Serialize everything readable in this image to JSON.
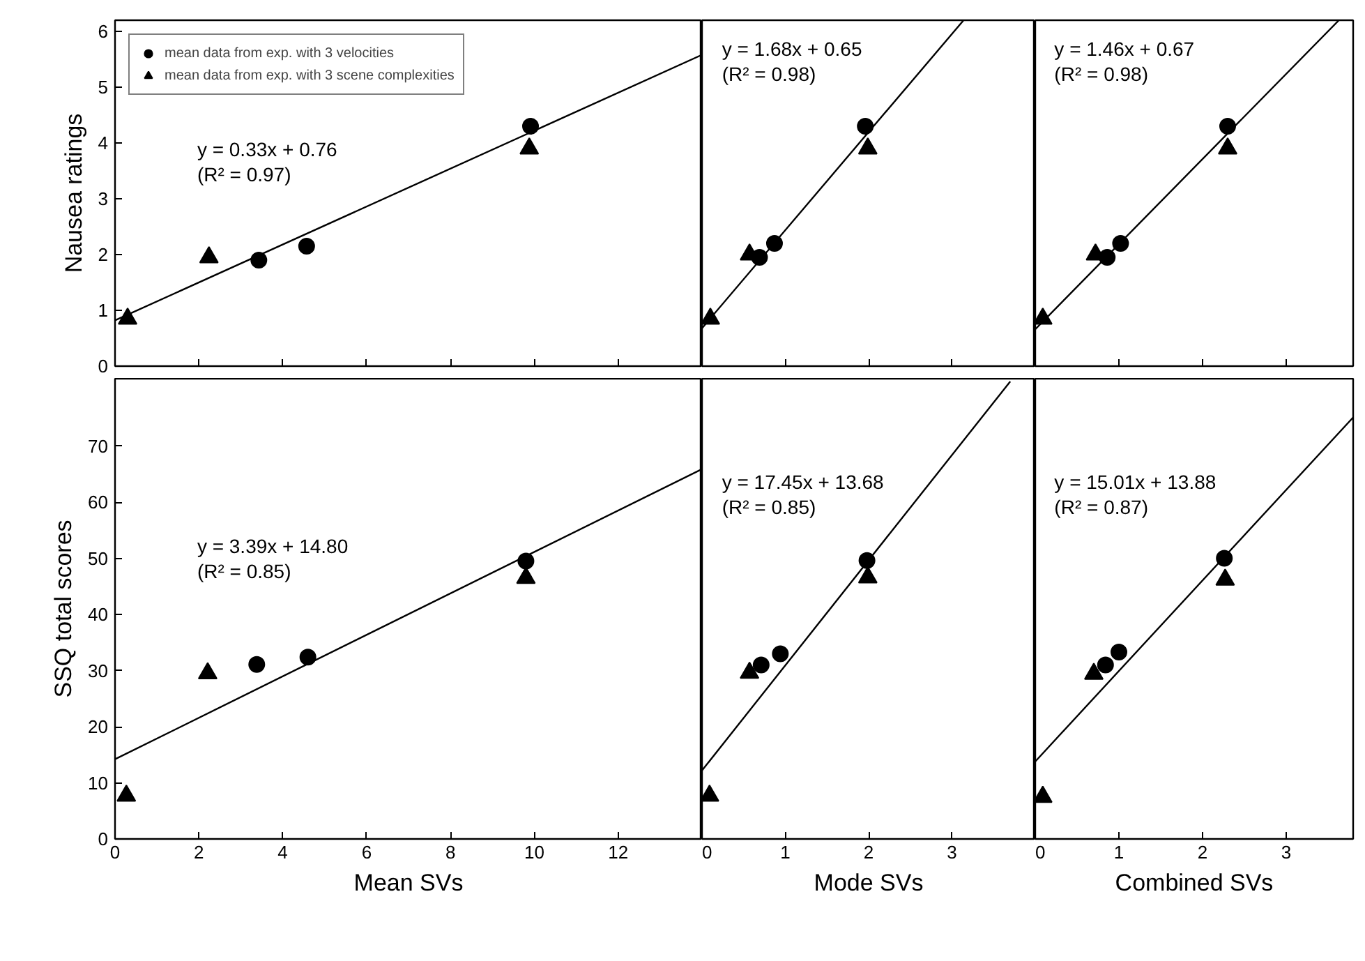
{
  "chart_data": [
    {
      "type": "scatter",
      "ylabel": "Nausea ratings",
      "xlim": [
        0,
        14
      ],
      "xticks": [
        0,
        2,
        4,
        6,
        8,
        10,
        12
      ],
      "ylim": [
        0,
        6.2
      ],
      "yticks": [
        0,
        1,
        2,
        3,
        4,
        5,
        6
      ],
      "tick_labels": "y",
      "legend": "top left",
      "annotations": [
        "y = 0.33x + 0.76",
        "(R² = 0.97)"
      ],
      "series": [
        {
          "name": "mean data from exp. with 3 velocities",
          "color": "#000000",
          "marker": "circle",
          "x": [
            3.43,
            4.57,
            9.91
          ],
          "values": [
            1.9,
            2.15,
            4.3
          ]
        },
        {
          "name": "mean data from exp. with 3 scene complexities",
          "color": "#000000",
          "marker": "triangle",
          "x": [
            0.3,
            2.24,
            9.88
          ],
          "values": [
            0.85,
            1.95,
            3.9
          ]
        },
        {
          "type": "line",
          "color": "#000000",
          "x": [
            0,
            14
          ],
          "values": [
            0.82,
            5.58
          ]
        }
      ]
    },
    {
      "type": "scatter",
      "xlim": [
        0,
        4
      ],
      "xticks": [
        0,
        1,
        2,
        3
      ],
      "ylim": [
        0,
        6.2
      ],
      "tick_labels": false,
      "annotations": [
        "y = 1.68x + 0.65",
        "(R² = 0.98)"
      ],
      "series": [
        {
          "color": "#000000",
          "marker": "circle",
          "x": [
            0.69,
            0.87,
            1.96
          ],
          "values": [
            1.95,
            2.2,
            4.3
          ]
        },
        {
          "color": "#000000",
          "marker": "triangle",
          "x": [
            0.1,
            0.57,
            1.99
          ],
          "values": [
            0.85,
            2.0,
            3.9
          ]
        },
        {
          "type": "line",
          "color": "#000000",
          "x": [
            0,
            3.14
          ],
          "values": [
            0.68,
            6.2
          ]
        }
      ]
    },
    {
      "type": "scatter",
      "xlim": [
        0,
        3.8
      ],
      "xticks": [
        0,
        1,
        2,
        3
      ],
      "ylim": [
        0,
        6.2
      ],
      "tick_labels": false,
      "annotations": [
        "y = 1.46x + 0.67",
        "(R² = 0.98)"
      ],
      "series": [
        {
          "color": "#000000",
          "marker": "circle",
          "x": [
            0.86,
            1.02,
            2.3
          ],
          "values": [
            1.95,
            2.2,
            4.3
          ]
        },
        {
          "color": "#000000",
          "marker": "triangle",
          "x": [
            0.09,
            0.72,
            2.3
          ],
          "values": [
            0.85,
            2.0,
            3.9
          ]
        },
        {
          "type": "line",
          "color": "#000000",
          "x": [
            0,
            3.63
          ],
          "values": [
            0.66,
            6.2
          ]
        }
      ]
    },
    {
      "type": "scatter",
      "xlabel": "Mean SVs",
      "ylabel": "SSQ total scores",
      "xlim": [
        0,
        14
      ],
      "xticks": [
        0,
        2,
        4,
        6,
        8,
        10,
        12
      ],
      "ylim": [
        0,
        82
      ],
      "yticks": [
        0,
        10,
        20,
        30,
        40,
        50,
        60,
        70
      ],
      "annotations": [
        "y = 3.39x + 14.80",
        "(R² = 0.85)"
      ],
      "series": [
        {
          "color": "#000000",
          "marker": "circle",
          "x": [
            3.38,
            4.6,
            9.8
          ],
          "values": [
            31.1,
            32.4,
            49.5
          ]
        },
        {
          "color": "#000000",
          "marker": "triangle",
          "x": [
            0.27,
            2.21,
            9.8
          ],
          "values": [
            7.7,
            29.5,
            46.5
          ]
        },
        {
          "type": "line",
          "color": "#000000",
          "x": [
            0,
            14
          ],
          "values": [
            14.2,
            65.9
          ]
        }
      ]
    },
    {
      "type": "scatter",
      "xlabel": "Mode SVs",
      "xlim": [
        0,
        4
      ],
      "xticks": [
        0,
        1,
        2,
        3
      ],
      "ylim": [
        0,
        82
      ],
      "tick_labels": "x",
      "annotations": [
        "y = 17.45x + 13.68",
        "(R² = 0.85)"
      ],
      "series": [
        {
          "color": "#000000",
          "marker": "circle",
          "x": [
            0.71,
            0.94,
            1.98
          ],
          "values": [
            31.0,
            33.0,
            49.6
          ]
        },
        {
          "color": "#000000",
          "marker": "triangle",
          "x": [
            0.09,
            0.57,
            1.99
          ],
          "values": [
            7.7,
            29.6,
            46.6
          ]
        },
        {
          "type": "line",
          "color": "#000000",
          "x": [
            0,
            3.7
          ],
          "values": [
            12.2,
            81.5
          ]
        }
      ]
    },
    {
      "type": "scatter",
      "xlabel": "Combined SVs",
      "xlim": [
        0,
        3.8
      ],
      "xticks": [
        0,
        1,
        2,
        3
      ],
      "ylim": [
        0,
        82
      ],
      "tick_labels": "x",
      "annotations": [
        "y = 15.01x + 13.88",
        "(R² = 0.87)"
      ],
      "series": [
        {
          "color": "#000000",
          "marker": "circle",
          "x": [
            0.84,
            1.0,
            2.26
          ],
          "values": [
            31.0,
            33.3,
            50.0
          ]
        },
        {
          "color": "#000000",
          "marker": "triangle",
          "x": [
            0.09,
            0.7,
            2.27
          ],
          "values": [
            7.5,
            29.4,
            46.2
          ]
        },
        {
          "type": "line",
          "color": "#000000",
          "x": [
            0,
            3.8
          ],
          "values": [
            13.8,
            75.1
          ]
        }
      ]
    }
  ]
}
